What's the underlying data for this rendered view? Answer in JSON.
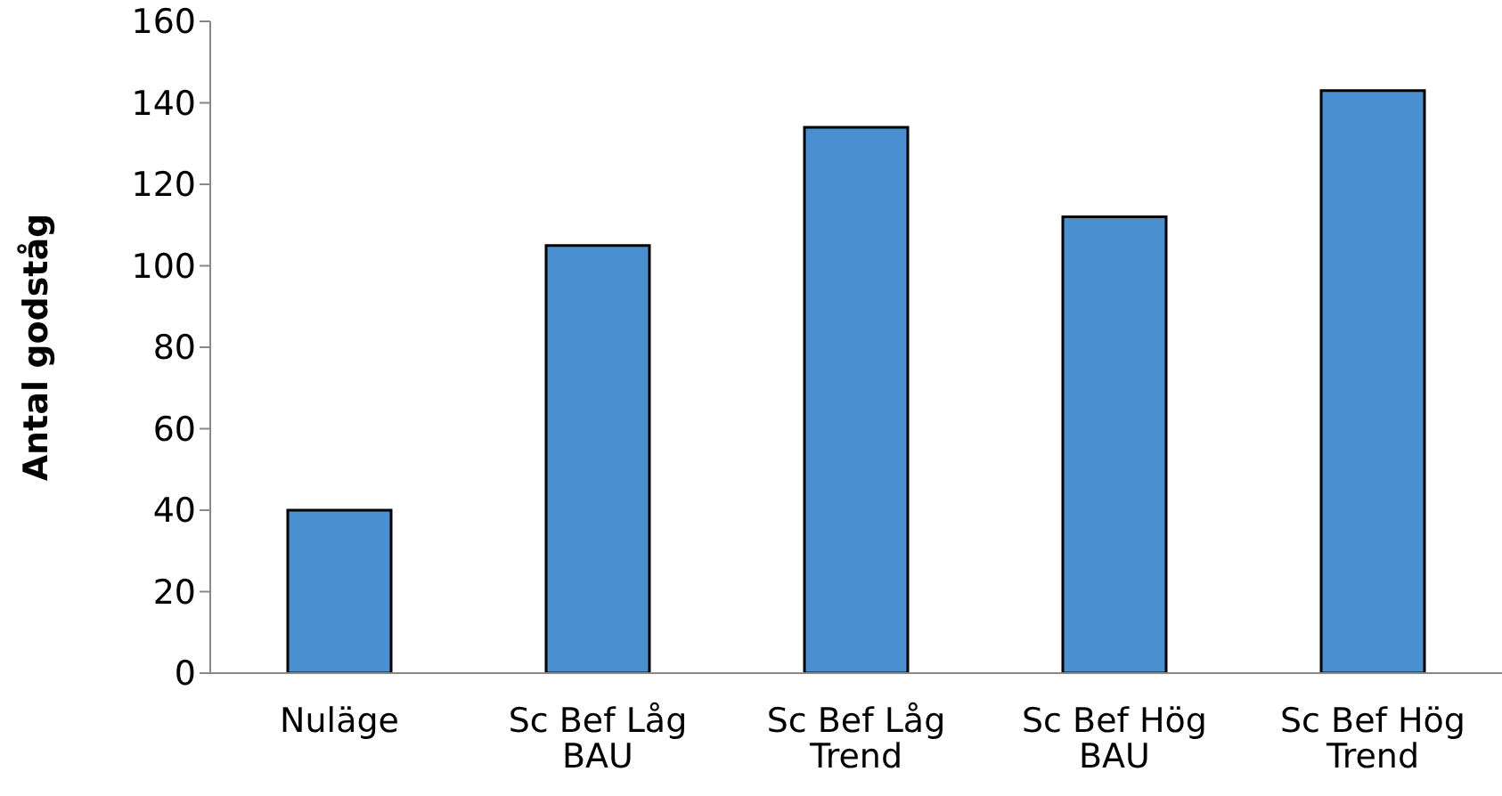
{
  "chart_data": {
    "type": "bar",
    "ylabel": "Antal godståg",
    "categories": [
      "Nuläge",
      "Sc Bef Låg BAU",
      "Sc Bef Låg Trend",
      "Sc Bef Hög BAU",
      "Sc Bef Hög Trend"
    ],
    "values": [
      40,
      105,
      134,
      112,
      143
    ],
    "color": "#4a8fd0",
    "ylim": [
      0,
      160
    ],
    "yticks": [
      0,
      20,
      40,
      60,
      80,
      100,
      120,
      140,
      160
    ],
    "grid": false,
    "legend": false
  }
}
